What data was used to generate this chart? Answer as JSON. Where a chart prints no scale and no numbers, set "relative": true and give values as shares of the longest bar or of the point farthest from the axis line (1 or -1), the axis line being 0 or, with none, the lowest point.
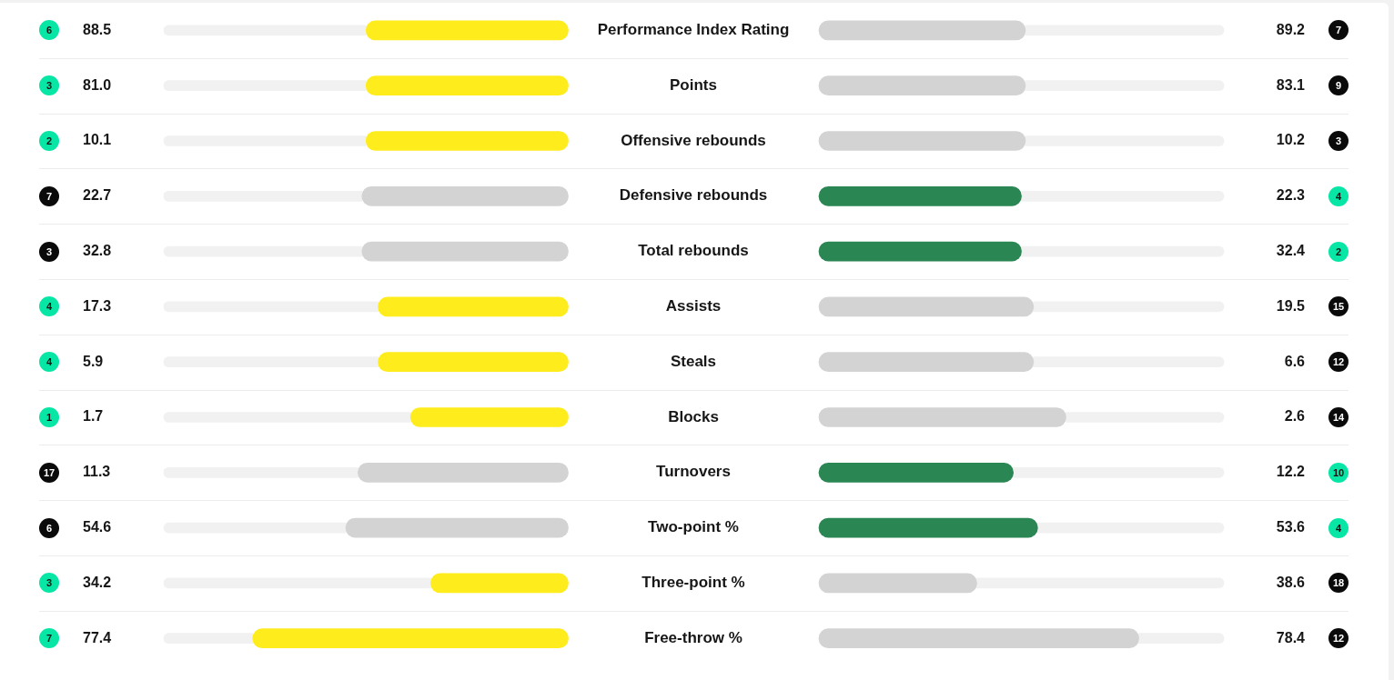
{
  "chart_data": [
    {
      "type": "bar",
      "orientation": "horizontal",
      "relative": true,
      "stacked": true,
      "categories": [
        "Performance Index Rating",
        "Points",
        "Offensive rebounds",
        "Defensive rebounds",
        "Total rebounds",
        "Assists",
        "Steals",
        "Blocks",
        "Turnovers",
        "Two-point %",
        "Three-point %",
        "Free-throw %"
      ],
      "series": [
        {
          "colors": [
            "#ffec1c",
            "#ffec1c",
            "#ffec1c",
            "#d3d3d3",
            "#d3d3d3",
            "#ffec1c",
            "#ffec1c",
            "#ffec1c",
            "#d3d3d3",
            "#d3d3d3",
            "#ffec1c",
            "#ffec1c"
          ],
          "values": [
            -0.5,
            -0.5,
            -0.5,
            -0.51,
            -0.51,
            -0.47,
            -0.47,
            -0.39,
            -0.52,
            -0.55,
            -0.34,
            -0.78
          ]
        },
        {
          "color": "#f1f1f1",
          "values": [
            -0.5,
            -0.5,
            -0.5,
            -0.49,
            -0.49,
            -0.53,
            -0.53,
            -0.61,
            -0.48,
            -0.45,
            -0.66,
            -0.22
          ]
        }
      ],
      "annotations": [
        "6",
        "88.5",
        "3",
        "81.0",
        "2",
        "10.1",
        "7",
        "22.7",
        "3",
        "32.8",
        "4",
        "17.3",
        "4",
        "5.9",
        "1",
        "1.7",
        "17",
        "11.3",
        "6",
        "54.6",
        "3",
        "34.2",
        "7",
        "77.4"
      ]
    },
    {
      "type": "bar",
      "orientation": "horizontal",
      "relative": true,
      "stacked": true,
      "categories": [
        null,
        null,
        null,
        null,
        null,
        null,
        null,
        null,
        null,
        null,
        null,
        null
      ],
      "series": [
        {
          "colors": [
            "#d3d3d3",
            "#d3d3d3",
            "#d3d3d3",
            "#2a8652",
            "#2a8652",
            "#d3d3d3",
            "#d3d3d3",
            "#d3d3d3",
            "#2a8652",
            "#2a8652",
            "#d3d3d3",
            "#d3d3d3"
          ],
          "values": [
            0.51,
            0.51,
            0.51,
            0.5,
            0.5,
            0.53,
            0.53,
            0.61,
            0.48,
            0.54,
            0.39,
            0.79
          ]
        },
        {
          "color": "#f1f1f1",
          "values": [
            0.49,
            0.49,
            0.49,
            0.5,
            0.5,
            0.47,
            0.47,
            0.39,
            0.52,
            0.46,
            0.61,
            0.21
          ]
        }
      ],
      "annotations": [
        "89.2",
        "7",
        "83.1",
        "9",
        "10.2",
        "3",
        "22.3",
        "4",
        "32.4",
        "2",
        "19.5",
        "15",
        "6.6",
        "12",
        "2.6",
        "14",
        "12.2",
        "10",
        "53.6",
        "4",
        "38.6",
        "18",
        "78.4",
        "12"
      ]
    }
  ]
}
